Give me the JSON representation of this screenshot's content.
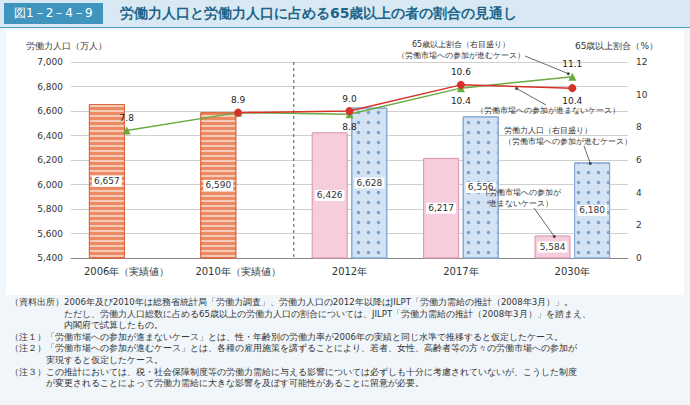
{
  "chart_data": {
    "type": "bar",
    "figure_number": "図1－2－4－9",
    "title": "労働力人口と労働力人口に占める65歳以上の者の割合の見通し",
    "categories": [
      "2006年（実績値）",
      "2010年（実績値）",
      "2012年",
      "2017年",
      "2030年"
    ],
    "y_label": "労働力人口（万人）",
    "y2_label": "65歳以上割合（%）",
    "ylim": [
      5400,
      7000
    ],
    "yticks": [
      {
        "value": 5400,
        "label": "5,400"
      },
      {
        "value": 5600,
        "label": "5,600"
      },
      {
        "value": 5800,
        "label": "5,800"
      },
      {
        "value": 6000,
        "label": "6,000"
      },
      {
        "value": 6200,
        "label": "6,200"
      },
      {
        "value": 6400,
        "label": "6,400"
      },
      {
        "value": 6600,
        "label": "6,600"
      },
      {
        "value": 6800,
        "label": "6,800"
      },
      {
        "value": 7000,
        "label": "7,000"
      }
    ],
    "y2lim": [
      0,
      12
    ],
    "y2ticks": [
      0,
      2,
      4,
      6,
      8,
      10,
      12
    ],
    "grid": true,
    "data_labels": true,
    "series": [
      {
        "type": "bar",
        "color": "#ec8a63",
        "values": [
          6657,
          6590,
          null,
          null,
          null
        ],
        "value_labels": [
          "6,657",
          "6,590",
          null,
          null,
          null
        ]
      },
      {
        "type": "bar",
        "color": "#f5cddd",
        "values": [
          null,
          null,
          6426,
          6217,
          5584
        ],
        "value_labels": [
          null,
          null,
          "6,426",
          "6,217",
          "5,584"
        ]
      },
      {
        "type": "bar",
        "color": "#d3e3f4",
        "values": [
          null,
          null,
          6628,
          6556,
          6180
        ],
        "value_labels": [
          null,
          null,
          "6,628",
          "6,556",
          "6,180"
        ]
      },
      {
        "type": "line",
        "axis": "y2",
        "color": "#6aab3f",
        "marker": "triangle",
        "values": [
          7.8,
          8.9,
          8.8,
          10.4,
          11.1
        ],
        "value_labels": [
          "7.8",
          "8.9",
          "8.8",
          "10.4",
          "11.1"
        ]
      },
      {
        "type": "line",
        "axis": "y2",
        "color": "#d7312a",
        "marker": "circle",
        "values": [
          null,
          8.9,
          9.0,
          10.6,
          10.4
        ],
        "value_labels": [
          null,
          null,
          "9.0",
          "10.6",
          "10.4"
        ]
      }
    ],
    "annotations": [
      [
        "65歳以上割合（右目盛り）",
        "（労働市場への参加が進むケース）"
      ],
      [
        "（労働市場への参加が進まないケース）"
      ],
      [
        "労働力人口（右目盛り）",
        "（労働市場への参加が進むケース）"
      ],
      [
        "（労働市場への参加が",
        "進まないケース）"
      ]
    ]
  },
  "notes": [
    {
      "head": "（資料出所）",
      "lines": [
        "2006年及び2010年は総務省統計局「労働力調査」、労働力人口の2012年以降はJILPT「労働力需給の推計（2008年3月）」。",
        "ただし、労働力人口総数に占める65歳以上の労働力人口の割合については、JILPT「労働力需給の推計（2008年3月）」を踏まえ、",
        "内閣府で試算したもの。"
      ]
    },
    {
      "head": "（注１）",
      "lines": [
        "「労働市場への参加が進まないケース」とは、性・年齢別の労働力率が2006年の実績と同じ水準で推移すると仮定したケース。"
      ]
    },
    {
      "head": "（注２）",
      "lines": [
        "「労働市場への参加が進むケース」とは、各種の雇用施策を講ずることにより、若者、女性、高齢者等の方々の労働市場への参加が",
        "実現すると仮定したケース。"
      ]
    },
    {
      "head": "（注３）",
      "lines": [
        "この推計においては、税・社会保障制度等の労働力需給に与える影響については必ずしも十分に考慮されていないが、こうした制度",
        "が変更されることによって労働力需給に大きな影響を及ぼす可能性があることに留意が必要。"
      ]
    }
  ]
}
